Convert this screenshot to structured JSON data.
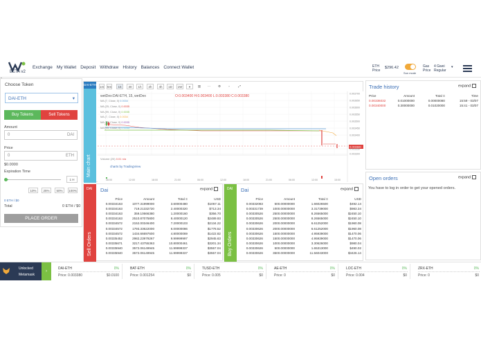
{
  "nav": {
    "beta": "BETA v2",
    "links": [
      "Exchange",
      "My Wallet",
      "Deposit",
      "Withdraw",
      "History",
      "Balances",
      "Connect Wallet"
    ]
  },
  "top": {
    "eth_label": "ETH",
    "eth_sub": "Price",
    "eth_price": "$296.42",
    "sun_mode": "Sun mode",
    "gas_label": "Gas",
    "gas_sub": "Price",
    "gas_value": "4 Gwei",
    "gas_mode": "Regular"
  },
  "left": {
    "title": "Choose Token",
    "token": "DAI-ETH",
    "buy_tab": "Buy Tokens",
    "sell_tab": "Sell Tokens",
    "amount_label": "Amount",
    "amount_value": "0",
    "amount_unit": "DAI",
    "price_label": "Price",
    "price_value": "0",
    "price_unit": "ETH",
    "usd_value": "$0.0000",
    "expiration_label": "Expiration Time",
    "expiration_value": "1 H",
    "pcts": [
      "10%",
      "25%",
      "50%",
      "100%"
    ],
    "balance": "0 ETH / $0",
    "total_label": "Total",
    "total_value": "0 ETH / $0",
    "order_button": "PLACE ORDER"
  },
  "chart": {
    "tab": "DAI-ETH",
    "side_label": "Main chart",
    "tools": [
      "1m",
      "5m",
      "15",
      "30",
      "1h",
      "2h",
      "4h",
      "1D",
      "1W"
    ],
    "symbol": "wetDex:DAI-ETH, 15, wetDex",
    "ohlc": "O:0.003400 H:0.003400 L:0.003380 C:0.003380",
    "ma": [
      "MA (7, Close, 0)",
      "MA (25, Close, 0)",
      "MA (99, Close, 0)",
      "MA (7, Close, 0)",
      "MA (25, Close, 0)",
      "MA (99, Close, 0)"
    ],
    "ma_vals": [
      "0.0034",
      "0.0035",
      "0.0035",
      "0.0034",
      "0.0035",
      "0.0035"
    ],
    "volume": "Volume (20)",
    "vol_vals": "0.01  n/a",
    "credit": "charts by TradingView",
    "xticks": [
      "06:00",
      "12:00",
      "18:00",
      "21:00",
      "06:00",
      "12:00",
      "18:00",
      "21:00",
      "06:00",
      "12:00",
      "15:00"
    ],
    "yticks": [
      "0.003700",
      "0.003650",
      "0.003600",
      "0.003550",
      "0.003500",
      "0.003450",
      "0.003400",
      "0.003380",
      "0.003350",
      "0.003300"
    ]
  },
  "sell": {
    "tag": "DAI",
    "title": "Dai",
    "expand": "expand",
    "side_label": "Sell Orders",
    "cols": [
      "Price",
      "Amount",
      "Total Ξ",
      "USD"
    ],
    "rows": [
      [
        "0.00334163",
        "1077.31999000",
        "3.60000480",
        "$1067.11"
      ],
      [
        "0.00334163",
        "719.21332720",
        "2.40000320",
        "$713.34"
      ],
      [
        "0.00334163",
        "359.10666380",
        "1.20000160",
        "$356.70"
      ],
      [
        "0.00334163",
        "2510.87075800",
        "8.40000120",
        "$2489.93"
      ],
      [
        "0.00334572",
        "2152.00346400",
        "7.20000103",
        "$2134.22"
      ],
      [
        "0.00334572",
        "1793.33622000",
        "6.00000086",
        "$1778.52"
      ],
      [
        "0.00334572",
        "1434.66697600",
        "4.80000069",
        "$1422.82"
      ],
      [
        "0.00335452",
        "2982.23979267",
        "9.99999997",
        "$2945.63"
      ],
      [
        "0.00335671",
        "3217.43755363",
        "10.80000461",
        "$3201.34"
      ],
      [
        "0.00335940",
        "3572.06149945",
        "11.99999337",
        "$3557.04"
      ],
      [
        "0.00335940",
        "3572.06149945",
        "11.99999337",
        "$3557.04"
      ]
    ]
  },
  "buy": {
    "tag": "DAI",
    "title": "Dai",
    "expand": "expand",
    "side_label": "Buy Orders",
    "cols": [
      "Price",
      "Amount",
      "Total Ξ",
      "USD"
    ],
    "rows": [
      [
        "0.00332083",
        "500.00000000",
        "1.66026500",
        "$492.14"
      ],
      [
        "0.00331739",
        "1000.00000000",
        "3.31739000",
        "$983.34"
      ],
      [
        "0.00330526",
        "2500.00000000",
        "8.26565000",
        "$2450.10"
      ],
      [
        "0.00330526",
        "2500.00000000",
        "8.26565000",
        "$2450.10"
      ],
      [
        "0.00330626",
        "2000.00000000",
        "6.61252000",
        "$1960.08"
      ],
      [
        "0.00330626",
        "2000.00000000",
        "6.61252000",
        "$1960.08"
      ],
      [
        "0.00330626",
        "1500.00000000",
        "4.95939000",
        "$1470.06"
      ],
      [
        "0.00330626",
        "1500.00000000",
        "4.95939000",
        "$1470.06"
      ],
      [
        "0.00330626",
        "1000.00000000",
        "3.30626000",
        "$980.04"
      ],
      [
        "0.00330626",
        "500.00000000",
        "1.65313000",
        "$490.02"
      ],
      [
        "0.00330626",
        "3500.00000000",
        "11.56043000",
        "$3426.14"
      ]
    ]
  },
  "trade": {
    "title": "Trade history",
    "expand": "expand",
    "cols": [
      "Price",
      "Amount",
      "Total Ξ",
      "Time"
    ],
    "rows": [
      [
        "0.00336032",
        "0.01000000",
        "0.00000080",
        "15:59 - 03/07"
      ],
      [
        "0.00340000",
        "0.30000000",
        "0.01020000",
        "15:41 - 03/07"
      ]
    ]
  },
  "open": {
    "title": "Open orders",
    "expand": "expand",
    "message": "You have to log in order to get your opened orders."
  },
  "metamask": {
    "line1": "Unlocked",
    "line2": "Metamask"
  },
  "tickers": [
    {
      "name": "DAI-ETH",
      "pct": "0%",
      "price": "Price: 0.003380",
      "usd": "$0.0100"
    },
    {
      "name": "BAT-ETH",
      "pct": "0%",
      "price": "Price: 0.001254",
      "usd": "$0"
    },
    {
      "name": "TUSD-ETH",
      "pct": "0%",
      "price": "Price: 0.005",
      "usd": "$0"
    },
    {
      "name": "AE-ETH",
      "pct": "0%",
      "price": "Price: 0",
      "usd": "$0"
    },
    {
      "name": "LOC-ETH",
      "pct": "0%",
      "price": "Price: 0.004",
      "usd": "$0"
    },
    {
      "name": "ZRX-ETH",
      "pct": "0%",
      "price": "Price: 0",
      "usd": "$0"
    }
  ]
}
